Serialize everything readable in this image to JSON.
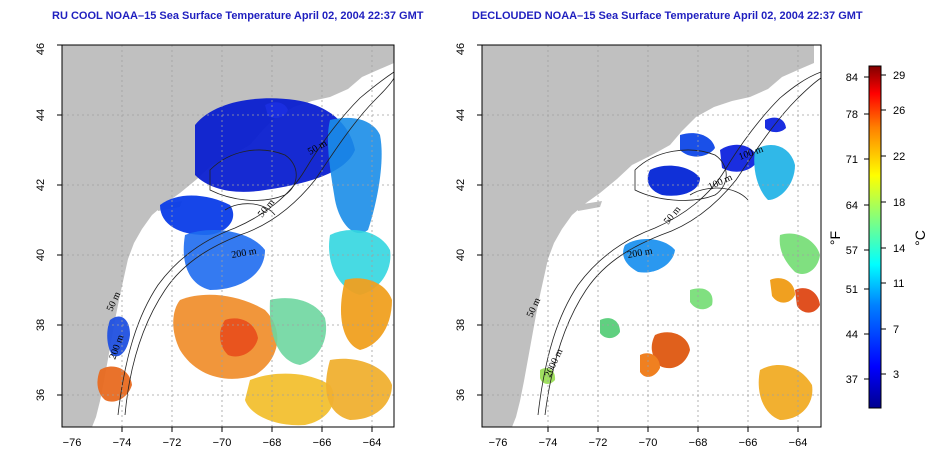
{
  "panels": [
    {
      "id": "left",
      "title": "RU COOL NOAA–15 Sea Surface Temperature April 02, 2004 22:37 GMT",
      "contour_labels": [
        "50 m",
        "200 m",
        "50 m",
        "200 m",
        "50 m"
      ]
    },
    {
      "id": "right",
      "title": "DECLOUDED NOAA–15 Sea Surface Temperature April 02, 2004 22:37 GMT",
      "contour_labels": [
        "50 m",
        "2000 m",
        "200 m",
        "50 m",
        "100 m",
        "100 m"
      ]
    }
  ],
  "axes": {
    "x_ticks": [
      "−76",
      "−74",
      "−72",
      "−70",
      "−68",
      "−66",
      "−64"
    ],
    "y_ticks": [
      "36",
      "38",
      "40",
      "42",
      "44",
      "46"
    ]
  },
  "colorbar": {
    "fahrenheit_label": "°F",
    "celsius_label": "°C",
    "fahrenheit_ticks": [
      "84",
      "78",
      "71",
      "64",
      "57",
      "51",
      "44",
      "37"
    ],
    "celsius_ticks": [
      "29",
      "26",
      "22",
      "18",
      "14",
      "11",
      "7",
      "3"
    ],
    "colors": [
      "#00008f",
      "#0000ff",
      "#0080ff",
      "#00ffff",
      "#80ff80",
      "#ffff00",
      "#ff8000",
      "#ff0000",
      "#800000"
    ]
  },
  "colors": {
    "land": "#c0c0c0",
    "grid": "#a0a0a0",
    "title": "#1f1fbf"
  }
}
